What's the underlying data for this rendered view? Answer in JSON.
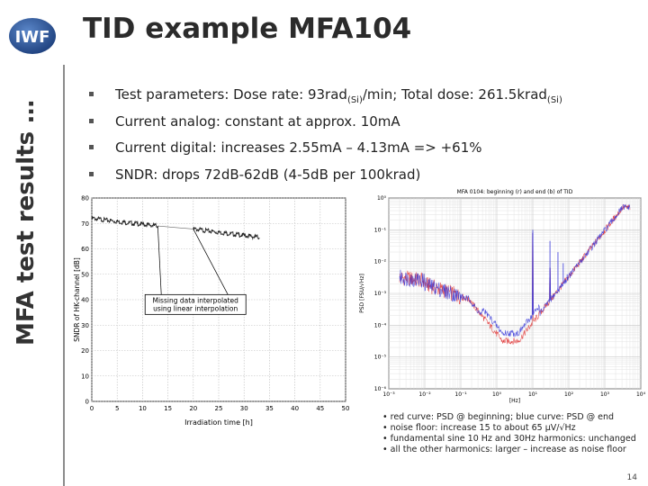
{
  "logo": {
    "text": "IWF"
  },
  "title": "TID example MFA104",
  "side_title": "MFA test results …",
  "bullets": [
    {
      "label": "Test parameters",
      "pre": ": Dose rate: 93rad",
      "sub1": "(Si)",
      "mid": "/min; Total dose: 261.5krad",
      "sub2": "(Si)"
    },
    {
      "label": "Current analog",
      "text": ": constant at approx. 10mA"
    },
    {
      "label": "Current digital",
      "text": ": increases 2.55mA – 4.13mA  => +61%"
    },
    {
      "label": "SNDR",
      "text": ": drops 72dB-62dB (4-5dB per 100krad)"
    }
  ],
  "chart_data": [
    {
      "type": "line",
      "xlabel": "Irradiation time [h]",
      "ylabel": "SNDR of HK-channel [dB]",
      "xlim": [
        0,
        50
      ],
      "ylim": [
        0,
        80
      ],
      "xticks": [
        "0",
        "5",
        "10",
        "15",
        "20",
        "25",
        "30",
        "35",
        "40",
        "45",
        "50"
      ],
      "yticks": [
        "0",
        "10",
        "20",
        "30",
        "40",
        "50",
        "60",
        "70",
        "80"
      ],
      "grid": true,
      "series": [
        {
          "x": [
            0,
            6,
            13
          ],
          "y": [
            72,
            70.5,
            69
          ]
        },
        {
          "x": [
            13,
            20
          ],
          "y": [
            69,
            67.8
          ]
        },
        {
          "x": [
            20,
            33
          ],
          "y": [
            67.8,
            64.5
          ]
        }
      ],
      "annotation": {
        "line1": "Missing data interpolated",
        "line2": "using linear interpolation"
      }
    },
    {
      "type": "line",
      "title": "MFA 0104: beginning (r) and end (b) of TID",
      "xlabel": "[Hz]",
      "ylabel": "PSD [FSU/√Hz]",
      "xscale": "log",
      "yscale": "log",
      "xticks": [
        "10⁻³",
        "10⁻²",
        "10⁻¹",
        "10⁰",
        "10¹",
        "10²",
        "10³",
        "10⁴"
      ],
      "yticks": [
        "10⁰",
        "10⁻¹",
        "10⁻²",
        "10⁻³",
        "10⁻⁴",
        "10⁻⁵",
        "10⁻⁶"
      ],
      "colors": {
        "red": "#e03030",
        "blue": "#3838d8"
      }
    }
  ],
  "notes": [
    "• red curve: PSD @ beginning; blue curve: PSD @ end",
    "• noise floor: increase 15 to about 65 µV/√Hz",
    "• fundamental sine 10 Hz and 30Hz harmonics: unchanged",
    "• all the other harmonics: larger – increase as noise floor"
  ],
  "page_number": "14"
}
